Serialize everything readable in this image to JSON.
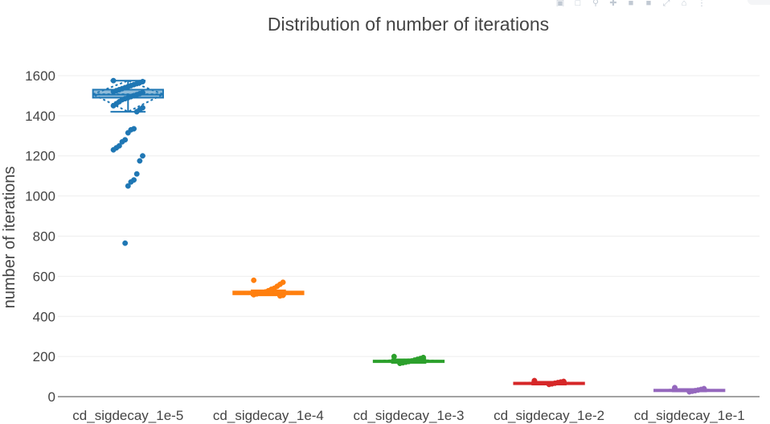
{
  "chart_data": {
    "type": "box",
    "title": "Distribution of number of iterations",
    "xlabel": "",
    "ylabel": "number of iterations",
    "ylim": [
      -20,
      1640
    ],
    "yticks": [
      0,
      200,
      400,
      600,
      800,
      1000,
      1200,
      1400,
      1600
    ],
    "grid": true,
    "legend": "none",
    "categories": [
      "cd_sigdecay_1e-5",
      "cd_sigdecay_1e-4",
      "cd_sigdecay_1e-3",
      "cd_sigdecay_1e-2",
      "cd_sigdecay_1e-1"
    ],
    "series": [
      {
        "category": "cd_sigdecay_1e-5",
        "color": "#1f77b4",
        "q1": 1490,
        "median": 1505,
        "q3": 1530,
        "mean": 1507,
        "sd_low": 1420,
        "sd_high": 1575,
        "whisker_low": 1420,
        "whisker_high": 1575,
        "points": [
          1575,
          1570,
          1565,
          1560,
          1555,
          1550,
          1545,
          1540,
          1535,
          1530,
          1525,
          1520,
          1515,
          1510,
          1505,
          1500,
          1495,
          1490,
          1485,
          1480,
          1470,
          1460,
          1450,
          1440,
          1430,
          1420,
          1335,
          1330,
          1315,
          1280,
          1270,
          1250,
          1240,
          1230,
          1200,
          1175,
          1110,
          1080,
          1070,
          1050,
          765
        ]
      },
      {
        "category": "cd_sigdecay_1e-4",
        "color": "#ff7f0e",
        "q1": 510,
        "median": 517,
        "q3": 524,
        "mean": 518,
        "sd_low": 505,
        "sd_high": 530,
        "whisker_low": 505,
        "whisker_high": 530,
        "points": [
          580,
          570,
          560,
          550,
          540,
          535,
          528,
          522,
          518,
          515,
          512,
          508,
          505,
          502
        ]
      },
      {
        "category": "cd_sigdecay_1e-3",
        "color": "#2ca02c",
        "q1": 172,
        "median": 176,
        "q3": 180,
        "mean": 177,
        "sd_low": 168,
        "sd_high": 186,
        "whisker_low": 168,
        "whisker_high": 186,
        "points": [
          200,
          195,
          190,
          186,
          182,
          178,
          175,
          172,
          169,
          166
        ]
      },
      {
        "category": "cd_sigdecay_1e-2",
        "color": "#d62728",
        "q1": 64,
        "median": 67,
        "q3": 70,
        "mean": 67,
        "sd_low": 60,
        "sd_high": 74,
        "whisker_low": 60,
        "whisker_high": 74,
        "points": [
          80,
          76,
          73,
          70,
          67,
          64,
          61
        ]
      },
      {
        "category": "cd_sigdecay_1e-1",
        "color": "#9467bd",
        "q1": 29,
        "median": 32,
        "q3": 35,
        "mean": 32,
        "sd_low": 26,
        "sd_high": 38,
        "whisker_low": 26,
        "whisker_high": 38,
        "points": [
          45,
          40,
          36,
          33,
          30,
          27,
          24
        ]
      }
    ]
  },
  "modebar": {
    "icons": [
      "camera-icon",
      "save-icon",
      "zoom-icon",
      "pan-icon",
      "zoom-in-icon",
      "zoom-out-icon",
      "autoscale-icon",
      "home-icon",
      "spike-icon"
    ]
  }
}
